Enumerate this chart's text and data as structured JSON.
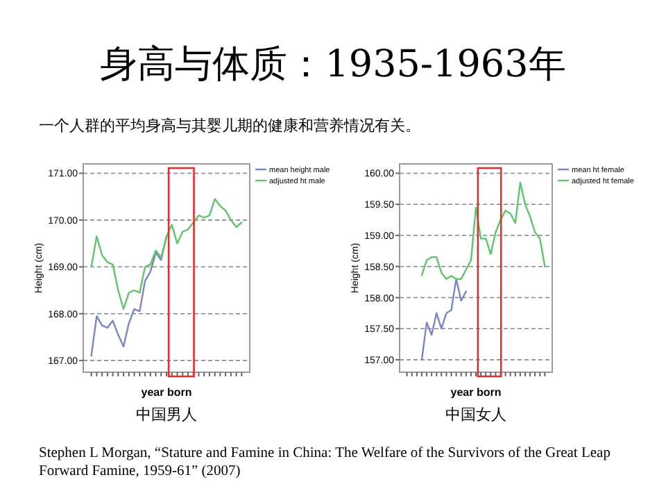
{
  "chart_data": [
    {
      "type": "other",
      "title": "身高与体质：1935-1963年",
      "subtitle": "一个人群的平均身高与其婴儿期的健康和营养情况有关。",
      "annotations": [
        "Stephen L Morgan, “Stature and Famine in China: The Welfare of the Survivors of the Great Leap Forward Famine, 1959-61” (2007)"
      ]
    },
    {
      "type": "line",
      "xlabel": "year born",
      "ylabel": "Height (cm)",
      "annotations": [
        "中国男人"
      ],
      "grid": "y",
      "legend": "top right",
      "categories": [
        null,
        null,
        null,
        null,
        null,
        null,
        null,
        null,
        null,
        null,
        null,
        null,
        null,
        null,
        null,
        null,
        null,
        null,
        null,
        null,
        null,
        null,
        null,
        null,
        null,
        null,
        null,
        null,
        null
      ],
      "ylim": [
        166.75,
        171.2
      ],
      "yticks": [
        {
          "value": 167,
          "label": "167.00"
        },
        {
          "value": 168,
          "label": "168.00"
        },
        {
          "value": 169,
          "label": "169.00"
        },
        {
          "value": 170,
          "label": "170.00"
        },
        {
          "value": 171,
          "label": "171.00"
        }
      ],
      "series": [
        {
          "name": "mean height male",
          "color": "#7b86c0",
          "values": [
            167.1,
            167.95,
            167.75,
            167.7,
            167.85,
            167.55,
            167.3,
            167.8,
            168.1,
            168.05,
            168.7,
            168.9,
            169.3,
            169.15,
            169.65,
            null,
            null,
            null,
            null,
            null,
            null,
            null,
            null,
            null,
            null,
            null,
            null,
            null,
            null
          ]
        },
        {
          "name": "adjusted ht male",
          "color": "#5fc46a",
          "values": [
            169.0,
            169.65,
            169.25,
            169.1,
            169.05,
            168.5,
            168.1,
            168.45,
            168.5,
            168.45,
            169.0,
            169.05,
            169.35,
            169.2,
            169.65,
            169.9,
            169.5,
            169.75,
            169.8,
            169.95,
            170.1,
            170.05,
            170.1,
            170.45,
            170.3,
            170.2,
            170.0,
            169.85,
            169.95
          ]
        }
      ]
    },
    {
      "type": "line",
      "xlabel": "year born",
      "ylabel": "Height (cm)",
      "annotations": [
        "中国女人"
      ],
      "grid": "y",
      "legend": "top right",
      "categories": [
        null,
        null,
        null,
        null,
        null,
        null,
        null,
        null,
        null,
        null,
        null,
        null,
        null,
        null,
        null,
        null,
        null,
        null,
        null,
        null,
        null,
        null,
        null,
        null,
        null,
        null,
        null,
        null,
        null
      ],
      "ylim": [
        156.8,
        160.15
      ],
      "yticks": [
        {
          "value": 157,
          "label": "157.00"
        },
        {
          "value": 157.5,
          "label": "157.50"
        },
        {
          "value": 158,
          "label": "158.00"
        },
        {
          "value": 158.5,
          "label": "158.50"
        },
        {
          "value": 159,
          "label": "159.00"
        },
        {
          "value": 159.5,
          "label": "159.50"
        },
        {
          "value": 160,
          "label": "160.00"
        }
      ],
      "series": [
        {
          "name": "mean ht female",
          "color": "#7b86c0",
          "values": [
            null,
            null,
            null,
            157.0,
            157.6,
            157.4,
            157.75,
            157.5,
            157.75,
            157.8,
            158.3,
            157.95,
            158.1,
            null,
            null,
            null,
            null,
            null,
            null,
            null,
            null,
            null,
            null,
            null,
            null,
            null,
            null,
            null,
            null
          ]
        },
        {
          "name": "adjusted ht female",
          "color": "#5fc46a",
          "values": [
            null,
            null,
            null,
            158.36,
            158.6,
            158.65,
            158.65,
            158.4,
            158.3,
            158.35,
            158.3,
            158.3,
            158.45,
            158.6,
            159.45,
            158.95,
            158.95,
            158.7,
            159.05,
            159.25,
            159.4,
            159.35,
            159.2,
            159.85,
            159.5,
            159.3,
            159.05,
            158.95,
            158.5
          ]
        }
      ]
    }
  ]
}
